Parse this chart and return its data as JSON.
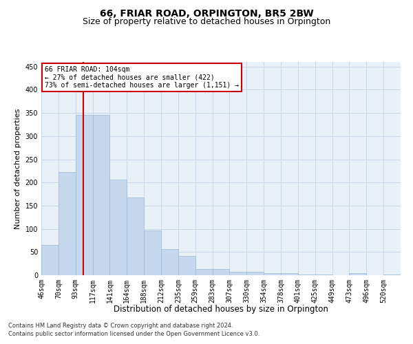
{
  "title": "66, FRIAR ROAD, ORPINGTON, BR5 2BW",
  "subtitle": "Size of property relative to detached houses in Orpington",
  "xlabel": "Distribution of detached houses by size in Orpington",
  "ylabel": "Number of detached properties",
  "bar_labels": [
    "46sqm",
    "70sqm",
    "93sqm",
    "117sqm",
    "141sqm",
    "164sqm",
    "188sqm",
    "212sqm",
    "235sqm",
    "259sqm",
    "283sqm",
    "307sqm",
    "330sqm",
    "354sqm",
    "378sqm",
    "401sqm",
    "425sqm",
    "449sqm",
    "473sqm",
    "496sqm",
    "520sqm"
  ],
  "bar_values": [
    65,
    222,
    345,
    345,
    207,
    167,
    97,
    57,
    42,
    13,
    13,
    7,
    7,
    5,
    5,
    1,
    1,
    0,
    4,
    0,
    2
  ],
  "bar_color": "#c5d8ed",
  "bar_edge_color": "#9ab8d0",
  "grid_color": "#c8d8e8",
  "background_color": "#e8f0f8",
  "vline_color": "#cc0000",
  "annotation_text": "66 FRIAR ROAD: 104sqm\n← 27% of detached houses are smaller (422)\n73% of semi-detached houses are larger (1,151) →",
  "annotation_box_color": "#ffffff",
  "annotation_box_edge_color": "#cc0000",
  "ylim": [
    0,
    460
  ],
  "yticks": [
    0,
    50,
    100,
    150,
    200,
    250,
    300,
    350,
    400,
    450
  ],
  "footer_line1": "Contains HM Land Registry data © Crown copyright and database right 2024.",
  "footer_line2": "Contains public sector information licensed under the Open Government Licence v3.0.",
  "title_fontsize": 10,
  "subtitle_fontsize": 9,
  "tick_fontsize": 7,
  "ylabel_fontsize": 8,
  "xlabel_fontsize": 8.5,
  "annotation_fontsize": 7,
  "footer_fontsize": 6
}
